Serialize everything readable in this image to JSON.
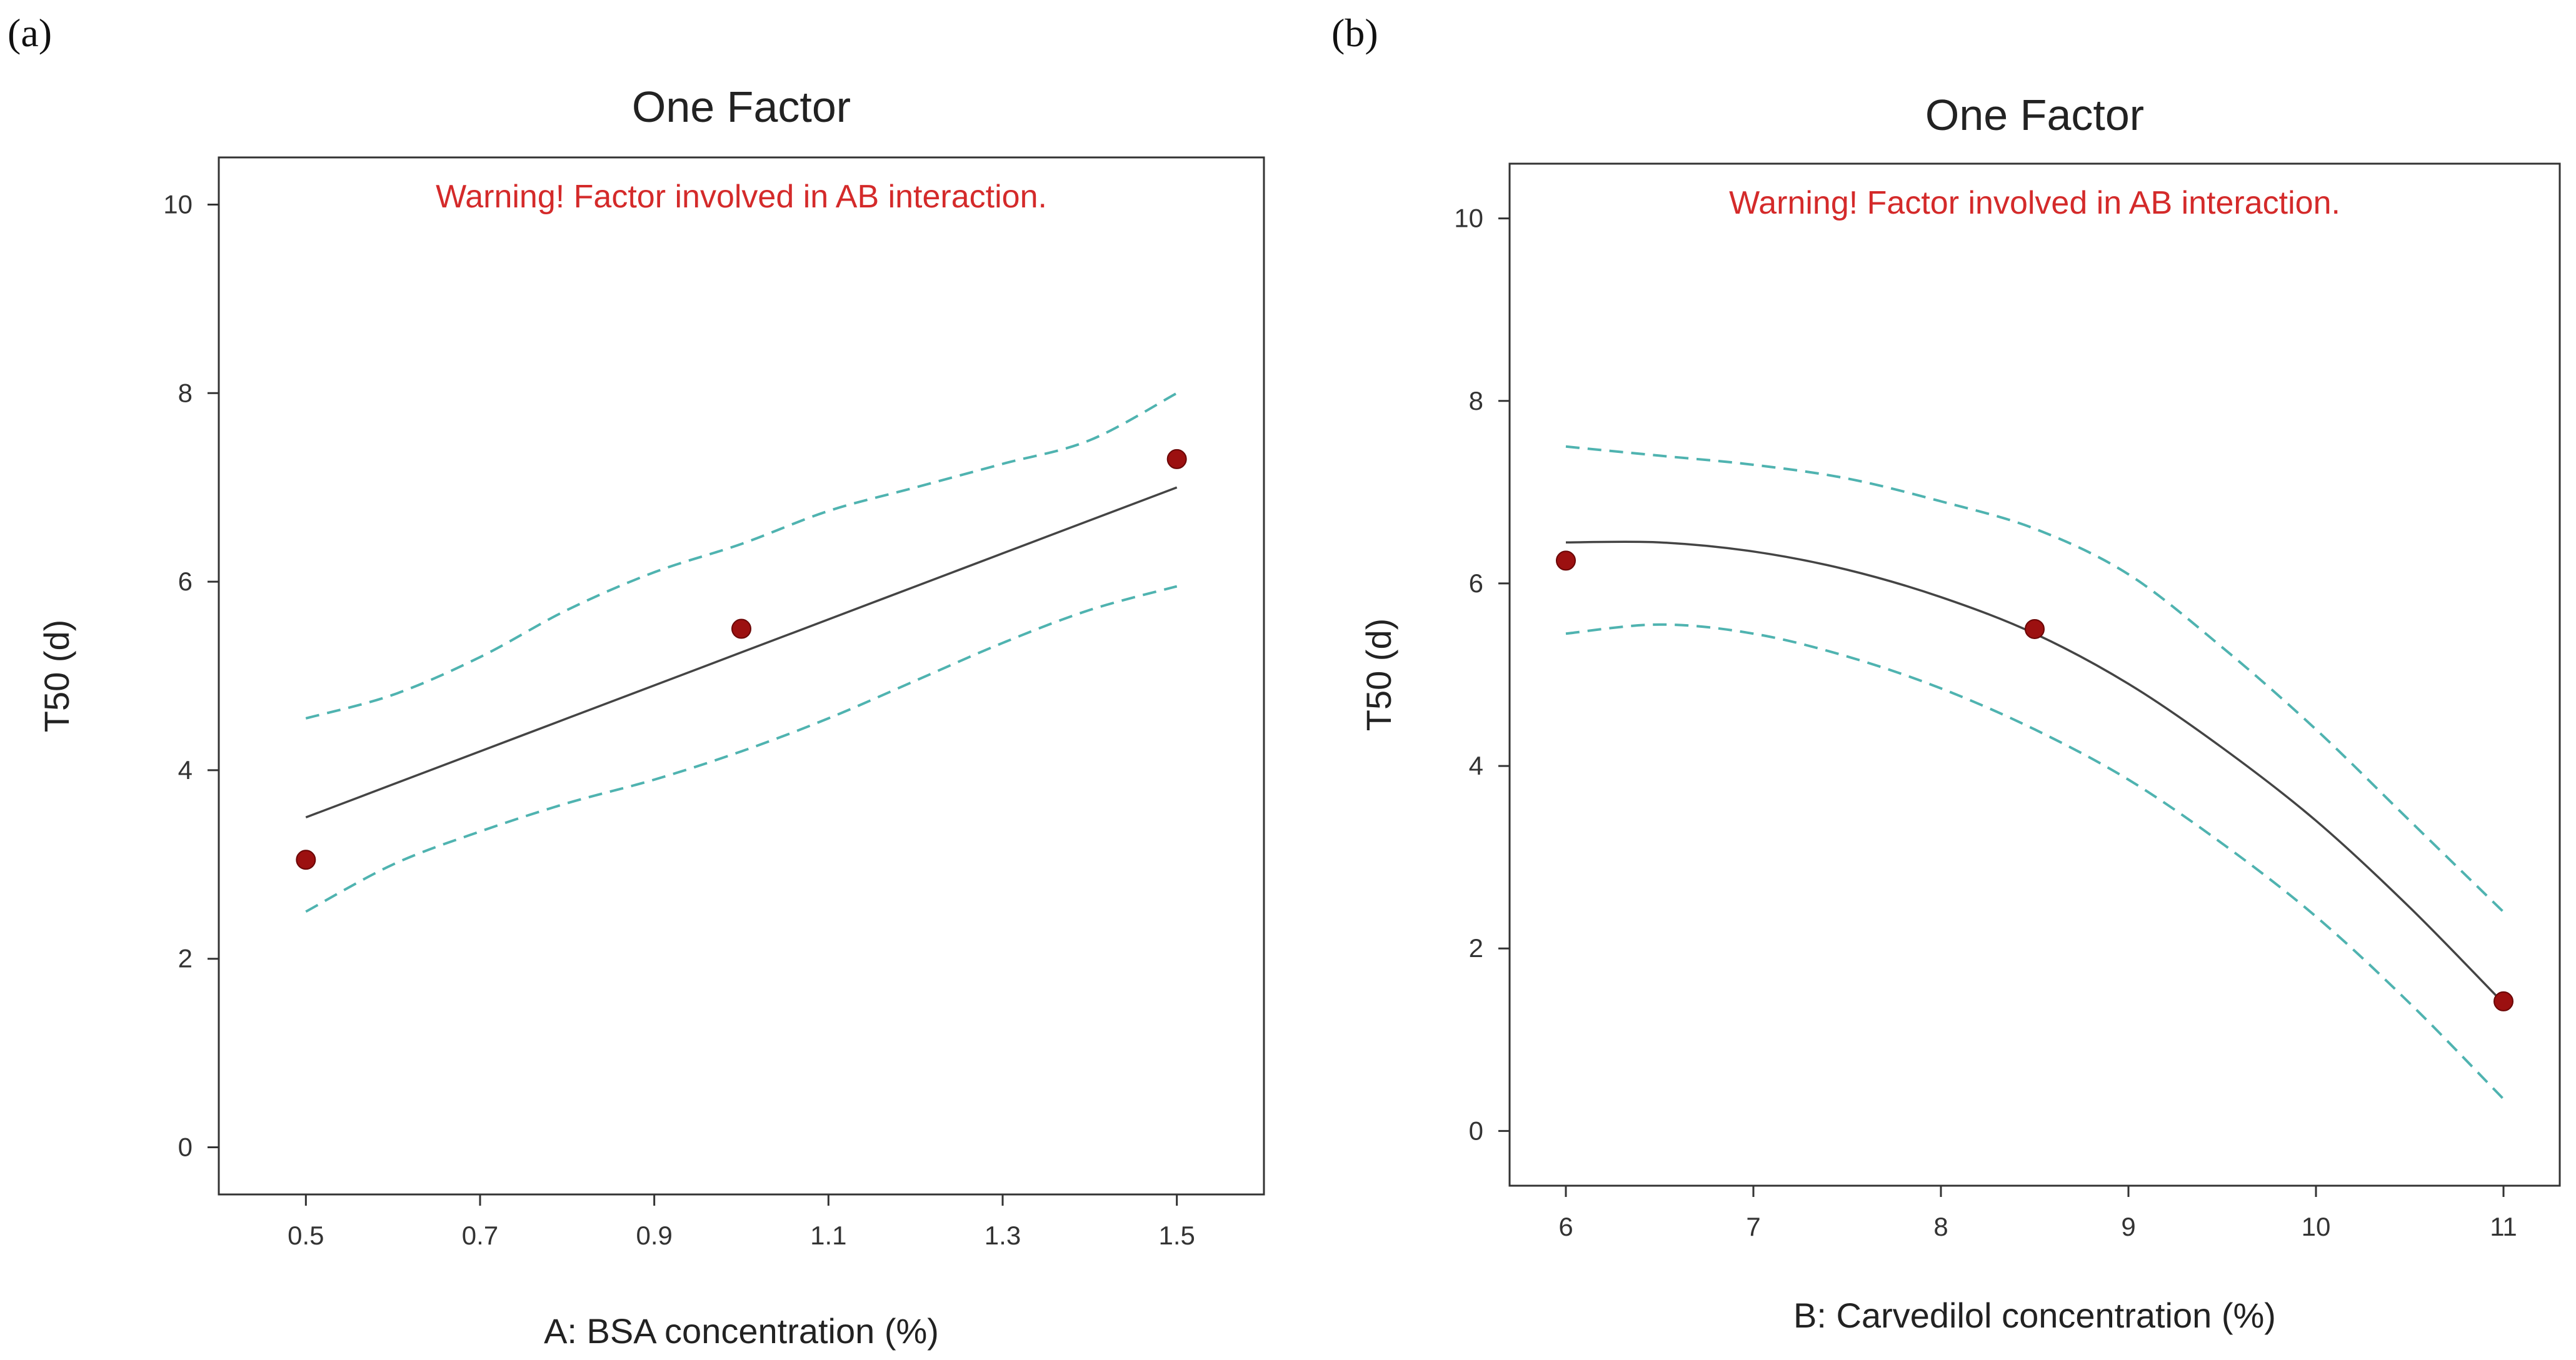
{
  "panels": {
    "a": "(a)",
    "b": "(b)"
  },
  "chart_data": [
    {
      "type": "line",
      "title": "One Factor",
      "annotation": "Warning! Factor involved in AB interaction.",
      "xlabel": "A: BSA concentration (%)",
      "ylabel": "T50 (d)",
      "xlim": [
        0.4,
        1.6
      ],
      "ylim": [
        -0.5,
        10.5
      ],
      "xticks": [
        0.5,
        0.7,
        0.9,
        1.1,
        1.3,
        1.5
      ],
      "xtick_labels": [
        "0.5",
        "0.7",
        "0.9",
        "1.1",
        "1.3",
        "1.5"
      ],
      "yticks": [
        0,
        2,
        4,
        6,
        8,
        10
      ],
      "ytick_labels": [
        "0",
        "2",
        "4",
        "6",
        "8",
        "10"
      ],
      "colors": {
        "fit": "#444444",
        "ci": "#4fb3b0",
        "points": "#9c1010",
        "annotation": "#d42a2a"
      },
      "series": [
        {
          "role": "fit",
          "x": [
            0.5,
            0.6,
            0.7,
            0.8,
            0.9,
            1.0,
            1.1,
            1.2,
            1.3,
            1.4,
            1.5
          ],
          "values": [
            3.5,
            3.85,
            4.2,
            4.55,
            4.9,
            5.25,
            5.6,
            5.95,
            6.3,
            6.65,
            7.0
          ]
        },
        {
          "role": "ci-upper",
          "x": [
            0.5,
            0.6,
            0.7,
            0.8,
            0.9,
            1.0,
            1.1,
            1.2,
            1.3,
            1.4,
            1.5
          ],
          "values": [
            4.55,
            4.8,
            5.2,
            5.7,
            6.1,
            6.4,
            6.75,
            7.0,
            7.25,
            7.5,
            8.0
          ]
        },
        {
          "role": "ci-lower",
          "x": [
            0.5,
            0.6,
            0.7,
            0.8,
            0.9,
            1.0,
            1.1,
            1.2,
            1.3,
            1.4,
            1.5
          ],
          "values": [
            2.5,
            3.0,
            3.35,
            3.65,
            3.9,
            4.2,
            4.55,
            4.95,
            5.35,
            5.7,
            5.95
          ]
        },
        {
          "role": "points",
          "x": [
            0.5,
            1.0,
            1.5
          ],
          "values": [
            3.05,
            5.5,
            7.3
          ]
        }
      ]
    },
    {
      "type": "line",
      "title": "One Factor",
      "annotation": "Warning! Factor involved in AB interaction.",
      "xlabel": "B: Carvedilol concentration (%)",
      "ylabel": "T50 (d)",
      "xlim": [
        5.7,
        11.3
      ],
      "ylim": [
        -0.6,
        10.6
      ],
      "xticks": [
        6,
        7,
        8,
        9,
        10,
        11
      ],
      "xtick_labels": [
        "6",
        "7",
        "8",
        "9",
        "10",
        "11"
      ],
      "yticks": [
        0,
        2,
        4,
        6,
        8,
        10
      ],
      "ytick_labels": [
        "0",
        "2",
        "4",
        "6",
        "8",
        "10"
      ],
      "colors": {
        "fit": "#444444",
        "ci": "#4fb3b0",
        "points": "#9c1010",
        "annotation": "#d42a2a"
      },
      "series": [
        {
          "role": "fit",
          "x": [
            6,
            6.5,
            7,
            7.5,
            8,
            8.5,
            9,
            9.5,
            10,
            10.5,
            11
          ],
          "values": [
            6.45,
            6.45,
            6.35,
            6.15,
            5.85,
            5.45,
            4.9,
            4.2,
            3.4,
            2.45,
            1.4
          ]
        },
        {
          "role": "ci-upper",
          "x": [
            6,
            6.5,
            7,
            7.5,
            8,
            8.5,
            9,
            9.5,
            10,
            10.5,
            11
          ],
          "values": [
            7.5,
            7.4,
            7.3,
            7.15,
            6.9,
            6.6,
            6.1,
            5.3,
            4.4,
            3.4,
            2.4
          ]
        },
        {
          "role": "ci-lower",
          "x": [
            6,
            6.5,
            7,
            7.5,
            8,
            8.5,
            9,
            9.5,
            10,
            10.5,
            11
          ],
          "values": [
            5.45,
            5.55,
            5.45,
            5.2,
            4.85,
            4.4,
            3.85,
            3.15,
            2.35,
            1.4,
            0.35
          ]
        },
        {
          "role": "points",
          "x": [
            6,
            8.5,
            11
          ],
          "values": [
            6.25,
            5.5,
            1.42
          ]
        }
      ]
    }
  ]
}
